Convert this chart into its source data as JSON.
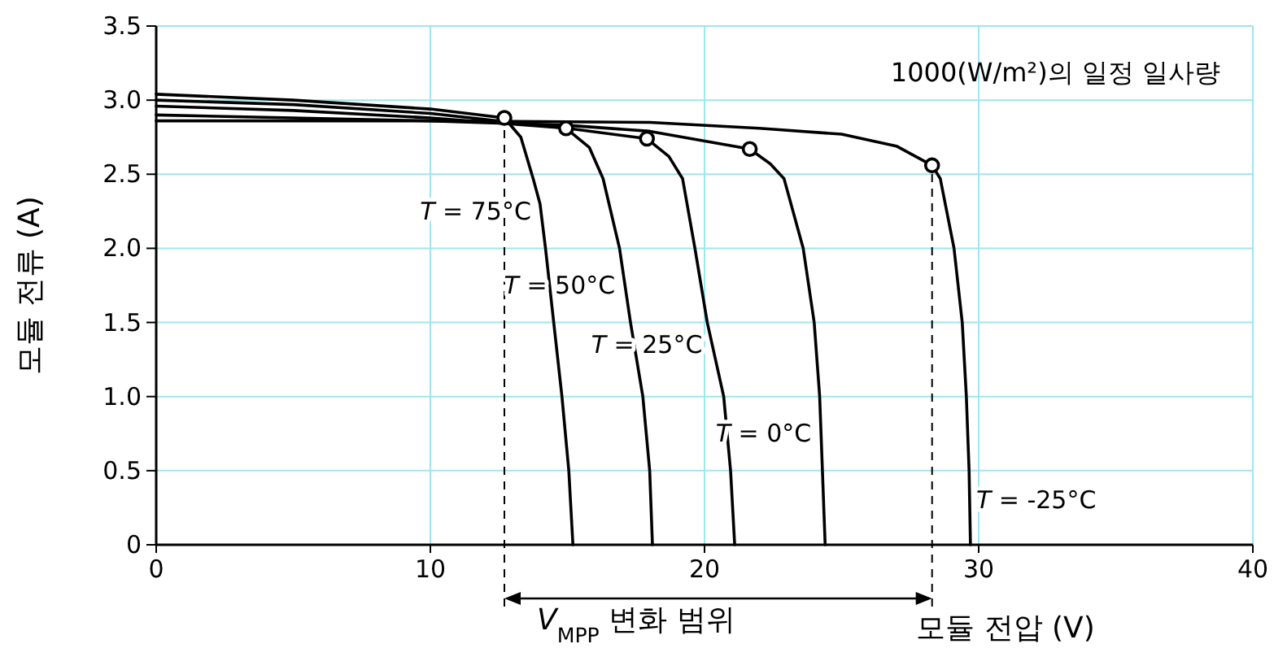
{
  "chart_data": {
    "type": "line",
    "xlabel": "모듈 전압 (V)",
    "ylabel": "모듈 전류 (A)",
    "xlim": [
      0,
      40
    ],
    "ylim": [
      0,
      3.5
    ],
    "xticks": [
      0,
      10,
      20,
      30,
      40
    ],
    "yticks": [
      0,
      0.5,
      {
        "value": 1,
        "label": "1.0"
      },
      1.5,
      {
        "value": 2,
        "label": "2.0"
      },
      2.5,
      {
        "value": 3,
        "label": "3.0"
      },
      3.5
    ],
    "grid": true,
    "line_style": "solid",
    "series": [
      {
        "name": "*T* = 75°C",
        "color": "#000000",
        "x": [
          0,
          5,
          10,
          12.7,
          13.3,
          13.75,
          14.0,
          14.2,
          14.5,
          14.8,
          15.05,
          15.2
        ],
        "values": [
          3.04,
          3.0,
          2.94,
          2.88,
          2.75,
          2.47,
          2.3,
          2.0,
          1.5,
          1.0,
          0.5,
          0
        ]
      },
      {
        "name": "*T* = 50°C",
        "color": "#000000",
        "x": [
          0,
          5,
          10,
          14.95,
          15.8,
          16.3,
          16.9,
          17.3,
          17.75,
          18.0,
          18.1
        ],
        "values": [
          3.0,
          2.97,
          2.91,
          2.81,
          2.68,
          2.47,
          2.0,
          1.5,
          1.0,
          0.5,
          0
        ]
      },
      {
        "name": "*T* = 25°C",
        "color": "#000000",
        "x": [
          0,
          5,
          10,
          15,
          17.9,
          18.7,
          19.2,
          19.65,
          20.1,
          20.7,
          20.95,
          21.1
        ],
        "values": [
          2.96,
          2.93,
          2.88,
          2.81,
          2.74,
          2.62,
          2.47,
          2.0,
          1.5,
          1.0,
          0.5,
          0
        ]
      },
      {
        "name": "*T* = 0°C",
        "color": "#000000",
        "x": [
          0,
          5,
          10,
          15,
          18,
          21.65,
          22.4,
          22.9,
          23.6,
          24.0,
          24.2,
          24.3,
          24.4
        ],
        "values": [
          2.9,
          2.88,
          2.86,
          2.83,
          2.79,
          2.67,
          2.57,
          2.47,
          2.0,
          1.5,
          1.0,
          0.5,
          0
        ]
      },
      {
        "name": "*T* = -25°C",
        "color": "#000000",
        "x": [
          0,
          10,
          18,
          22,
          25,
          27,
          28.3,
          28.6,
          29.1,
          29.4,
          29.55,
          29.65,
          29.7
        ],
        "values": [
          2.86,
          2.86,
          2.85,
          2.81,
          2.77,
          2.69,
          2.56,
          2.47,
          2.0,
          1.5,
          1.0,
          0.5,
          0
        ]
      },
      {
        "type": "scatter",
        "marker": "circle",
        "color": "#000000",
        "x": [
          12.7,
          14.95,
          17.9,
          21.65,
          28.3
        ],
        "values": [
          2.88,
          2.81,
          2.74,
          2.67,
          2.56
        ]
      }
    ],
    "ref_lines": [
      {
        "axis": "x",
        "value": 12.7,
        "color": "#000000",
        "line_style": "dashed"
      },
      {
        "axis": "x",
        "value": 28.3,
        "color": "#000000",
        "line_style": "dashed"
      }
    ],
    "annotations": [
      "1000(W/m²)의 일정 일사량",
      "*V*$_{MPP}$ 변화 범위"
    ]
  }
}
